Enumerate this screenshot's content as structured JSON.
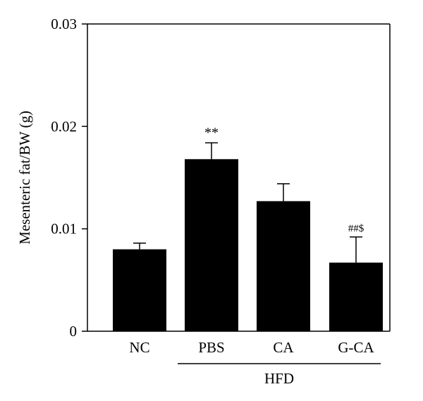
{
  "chart_data": {
    "type": "bar",
    "title": "",
    "xlabel": "",
    "ylabel": "Mesenteric fat/BW (g)",
    "categories": [
      "NC",
      "PBS",
      "CA",
      "G-CA"
    ],
    "values": [
      0.008,
      0.0168,
      0.0127,
      0.0067
    ],
    "errors": [
      0.0006,
      0.0016,
      0.0017,
      0.0025
    ],
    "annotations": [
      "",
      "**",
      "",
      "##$"
    ],
    "ylim": [
      0,
      0.03
    ],
    "yticks": [
      0,
      0.01,
      0.02,
      0.03
    ],
    "ytick_labels": [
      "0",
      "0.01",
      "0.02",
      "0.03"
    ],
    "group_label": {
      "text": "HFD",
      "categories": [
        "PBS",
        "CA",
        "G-CA"
      ]
    },
    "grid": false,
    "legend": "none",
    "colors": {
      "bar": "#000000",
      "axis": "#000000",
      "background": "#ffffff"
    }
  }
}
